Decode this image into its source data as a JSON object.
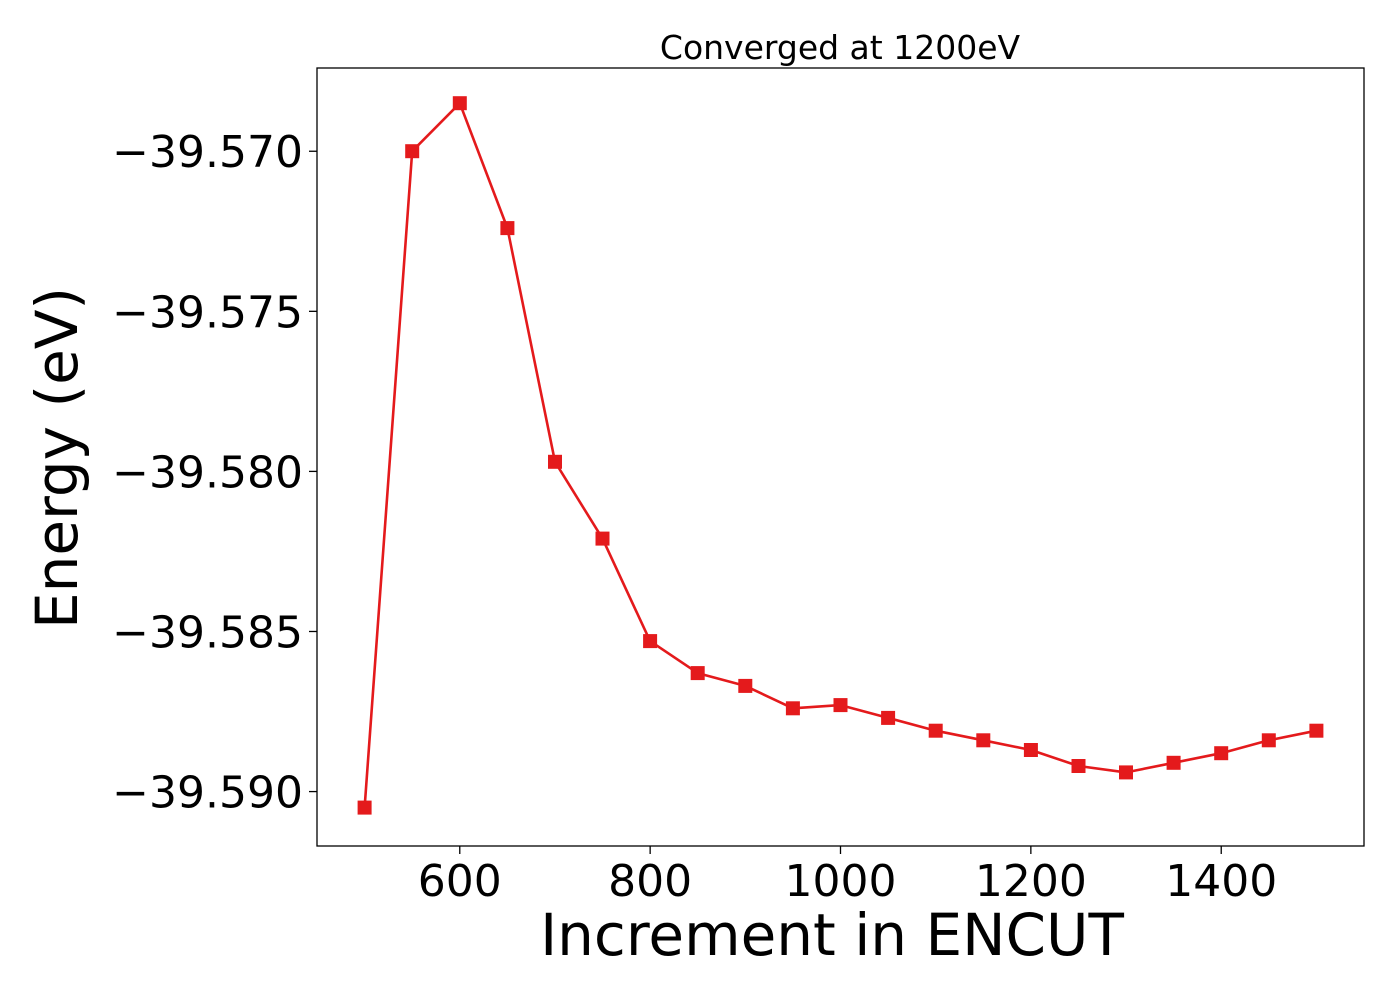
{
  "chart_data": {
    "type": "line",
    "title": "Converged at 1200eV",
    "xlabel": "Increment in ENCUT",
    "ylabel": "Energy (eV)",
    "x": [
      500,
      550,
      600,
      650,
      700,
      750,
      800,
      850,
      900,
      950,
      1000,
      1050,
      1100,
      1150,
      1200,
      1250,
      1300,
      1350,
      1400,
      1450,
      1500
    ],
    "series": [
      {
        "values": [
          -39.5905,
          -39.57,
          -39.5685,
          -39.5724,
          -39.5797,
          -39.5821,
          -39.5853,
          -39.5863,
          -39.5867,
          -39.5874,
          -39.5873,
          -39.5877,
          -39.5881,
          -39.5884,
          -39.5887,
          -39.5892,
          -39.5894,
          -39.5891,
          -39.5888,
          -39.5884,
          -39.5881
        ],
        "color": "#e41a1c",
        "marker": "square"
      }
    ],
    "xlim": [
      450,
      1550
    ],
    "ylim": [
      -39.5917,
      -39.5674
    ],
    "xticks": [
      600,
      800,
      1000,
      1200,
      1400
    ],
    "xtick_labels": [
      "600",
      "800",
      "1000",
      "1200",
      "1400"
    ],
    "yticks": [
      -39.57,
      -39.575,
      -39.58,
      -39.585,
      -39.59
    ],
    "ytick_labels": [
      "−39.570",
      "−39.575",
      "−39.580",
      "−39.585",
      "−39.590"
    ],
    "grid": false,
    "legend": "none"
  }
}
